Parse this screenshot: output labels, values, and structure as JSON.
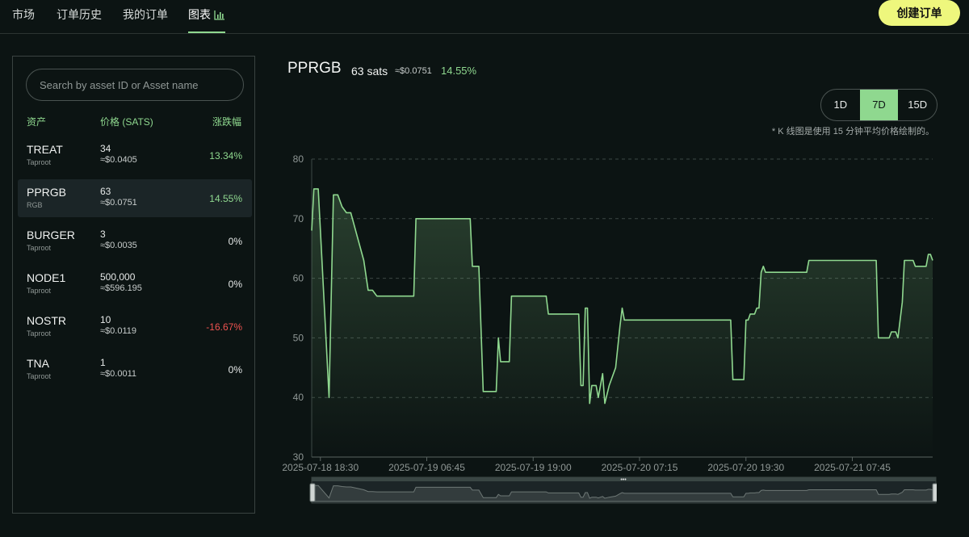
{
  "nav": {
    "tabs": [
      {
        "label": "市场"
      },
      {
        "label": "订单历史"
      },
      {
        "label": "我的订单"
      },
      {
        "label": "图表"
      }
    ],
    "create_button": "创建订单"
  },
  "sidebar": {
    "search_placeholder": "Search by asset ID or Asset name",
    "headers": {
      "asset": "资产",
      "price": "价格 (SATS)",
      "change": "涨跌幅"
    },
    "assets": [
      {
        "name": "TREAT",
        "type": "Taproot",
        "price": "34",
        "usd": "≈$0.0405",
        "change": "13.34%"
      },
      {
        "name": "PPRGB",
        "type": "RGB",
        "price": "63",
        "usd": "≈$0.0751",
        "change": "14.55%"
      },
      {
        "name": "BURGER",
        "type": "Taproot",
        "price": "3",
        "usd": "≈$0.0035",
        "change": "0%"
      },
      {
        "name": "NODE1",
        "type": "Taproot",
        "price": "500,000",
        "usd": "≈$596.195",
        "change": "0%"
      },
      {
        "name": "NOSTR",
        "type": "Taproot",
        "price": "10",
        "usd": "≈$0.0119",
        "change": "-16.67%"
      },
      {
        "name": "TNA",
        "type": "Taproot",
        "price": "1",
        "usd": "≈$0.0011",
        "change": "0%"
      }
    ]
  },
  "header": {
    "symbol": "PPRGB",
    "sats": "63 sats",
    "usd": "≈$0.0751",
    "change": "14.55%"
  },
  "ranges": [
    "1D",
    "7D",
    "15D"
  ],
  "active_range": "7D",
  "note": "* K 线图是使用 15 分钟平均价格绘制的。",
  "colors": {
    "accent": "#8fd88f",
    "button": "#eef77d",
    "negative": "#ef5350",
    "background": "#0c1413"
  },
  "chart_data": {
    "type": "line",
    "title": "",
    "xlabel": "",
    "ylabel": "",
    "ylim": [
      30,
      80
    ],
    "yticks": [
      30,
      40,
      50,
      60,
      70,
      80
    ],
    "xlim": [
      "2025-07-18 17:30",
      "2025-07-21 17:00"
    ],
    "xticks": [
      "2025-07-18 18:30",
      "2025-07-19 06:45",
      "2025-07-19 19:00",
      "2025-07-20 07:15",
      "2025-07-20 19:30",
      "2025-07-21 07:45"
    ],
    "grid": true,
    "series": [
      {
        "color": "#8fd88f",
        "points": [
          [
            "2025-07-18 17:30",
            68
          ],
          [
            "2025-07-18 17:45",
            75
          ],
          [
            "2025-07-18 18:15",
            75
          ],
          [
            "2025-07-18 18:30",
            68
          ],
          [
            "2025-07-18 19:30",
            40
          ],
          [
            "2025-07-18 20:00",
            74
          ],
          [
            "2025-07-18 20:30",
            74
          ],
          [
            "2025-07-18 21:00",
            72
          ],
          [
            "2025-07-18 21:30",
            71
          ],
          [
            "2025-07-18 22:00",
            71
          ],
          [
            "2025-07-18 23:30",
            63
          ],
          [
            "2025-07-19 00:00",
            58
          ],
          [
            "2025-07-19 00:30",
            58
          ],
          [
            "2025-07-19 01:00",
            57
          ],
          [
            "2025-07-19 05:15",
            57
          ],
          [
            "2025-07-19 05:30",
            70
          ],
          [
            "2025-07-19 11:45",
            70
          ],
          [
            "2025-07-19 12:00",
            62
          ],
          [
            "2025-07-19 12:45",
            62
          ],
          [
            "2025-07-19 13:15",
            41
          ],
          [
            "2025-07-19 14:45",
            41
          ],
          [
            "2025-07-19 15:00",
            50
          ],
          [
            "2025-07-19 15:15",
            46
          ],
          [
            "2025-07-19 16:15",
            46
          ],
          [
            "2025-07-19 16:30",
            57
          ],
          [
            "2025-07-19 20:30",
            57
          ],
          [
            "2025-07-19 20:45",
            54
          ],
          [
            "2025-07-20 00:15",
            54
          ],
          [
            "2025-07-20 00:30",
            42
          ],
          [
            "2025-07-20 00:45",
            42
          ],
          [
            "2025-07-20 01:00",
            55
          ],
          [
            "2025-07-20 01:15",
            55
          ],
          [
            "2025-07-20 01:30",
            39
          ],
          [
            "2025-07-20 01:45",
            42
          ],
          [
            "2025-07-20 02:15",
            42
          ],
          [
            "2025-07-20 02:30",
            40
          ],
          [
            "2025-07-20 03:00",
            44
          ],
          [
            "2025-07-20 03:15",
            39
          ],
          [
            "2025-07-20 03:45",
            42
          ],
          [
            "2025-07-20 04:30",
            45
          ],
          [
            "2025-07-20 05:00",
            52
          ],
          [
            "2025-07-20 05:15",
            55
          ],
          [
            "2025-07-20 05:30",
            53
          ],
          [
            "2025-07-20 17:45",
            53
          ],
          [
            "2025-07-20 18:00",
            43
          ],
          [
            "2025-07-20 19:15",
            43
          ],
          [
            "2025-07-20 19:30",
            53
          ],
          [
            "2025-07-20 19:45",
            53
          ],
          [
            "2025-07-20 20:00",
            54
          ],
          [
            "2025-07-20 20:30",
            54
          ],
          [
            "2025-07-20 20:45",
            55
          ],
          [
            "2025-07-20 21:00",
            55
          ],
          [
            "2025-07-20 21:15",
            61
          ],
          [
            "2025-07-20 21:30",
            62
          ],
          [
            "2025-07-20 21:45",
            61
          ],
          [
            "2025-07-21 02:30",
            61
          ],
          [
            "2025-07-21 02:45",
            63
          ],
          [
            "2025-07-21 10:30",
            63
          ],
          [
            "2025-07-21 10:45",
            50
          ],
          [
            "2025-07-21 12:00",
            50
          ],
          [
            "2025-07-21 12:15",
            51
          ],
          [
            "2025-07-21 12:45",
            51
          ],
          [
            "2025-07-21 13:00",
            50
          ],
          [
            "2025-07-21 13:30",
            56
          ],
          [
            "2025-07-21 13:45",
            63
          ],
          [
            "2025-07-21 14:45",
            63
          ],
          [
            "2025-07-21 15:00",
            62
          ],
          [
            "2025-07-21 16:15",
            62
          ],
          [
            "2025-07-21 16:30",
            64
          ],
          [
            "2025-07-21 16:45",
            64
          ],
          [
            "2025-07-21 17:00",
            63
          ]
        ]
      }
    ]
  }
}
